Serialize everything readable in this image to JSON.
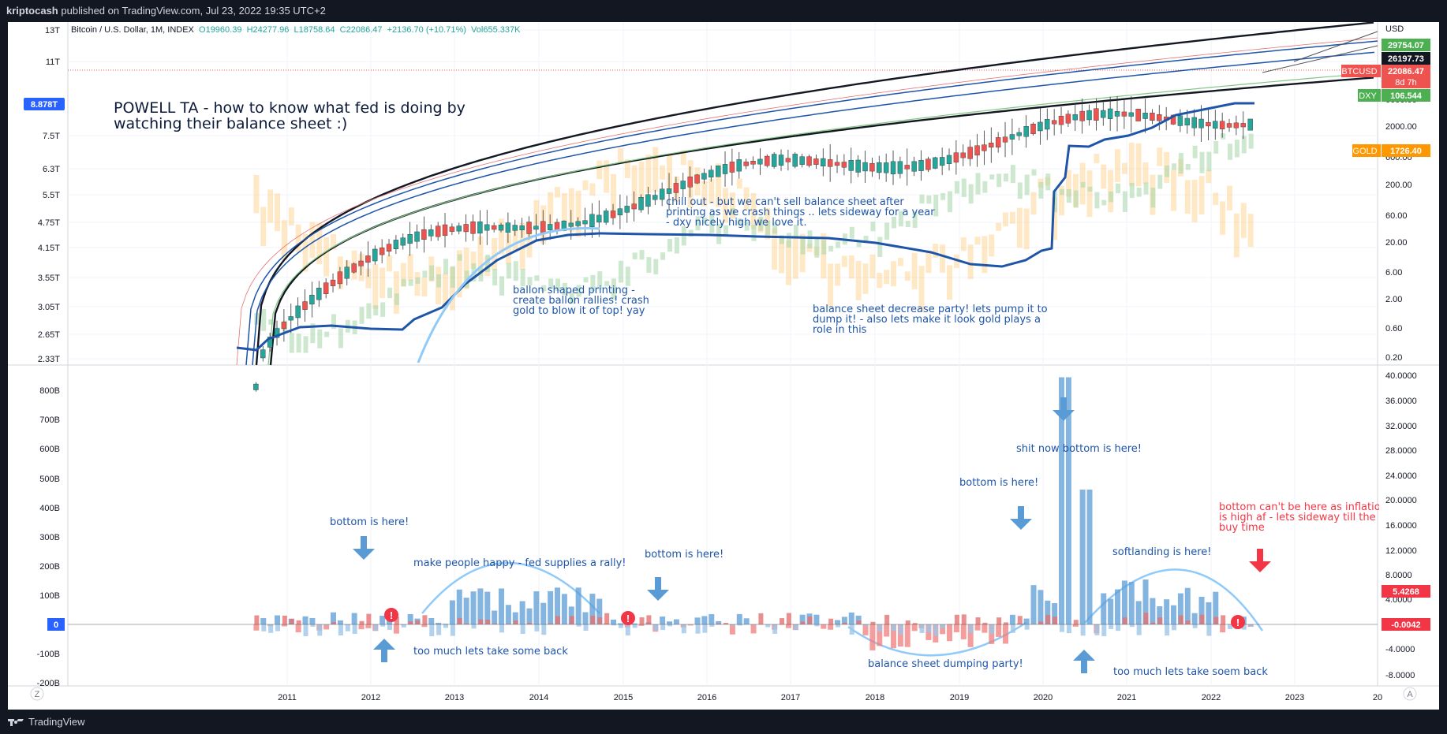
{
  "header": {
    "author": "kriptocash",
    "published_text": "published on TradingView.com, Jul 23, 2022 19:35 UTC+2"
  },
  "legend": {
    "symbol": "Bitcoin / U.S. Dollar, 1M, INDEX",
    "open": "O19960.39",
    "high": "H24277.96",
    "low": "L18758.64",
    "close": "C22086.47",
    "change": "+2136.70 (+10.71%)",
    "volume": "Vol655.337K"
  },
  "footer": {
    "brand": "TradingView",
    "left_button": "Z",
    "right_button": "A"
  },
  "colors": {
    "up": "#26a69a",
    "down": "#ef5350",
    "bs_line": "#1e55a8",
    "gold": "#ffcc80",
    "dxy": "#a5d6a7",
    "accent_blue": "#2962ff",
    "neg_red": "#f07c7c",
    "pos_blue": "#5b9bd5"
  },
  "annotations": {
    "title": "POWELL TA - how to know what fed is doing by watching their balance sheet :)",
    "chill": [
      "chill out - but we can't sell balance sheet after",
      "printing as we crash things .. lets sideway for a year",
      "- dxy nicely high we love it."
    ],
    "ballon": [
      "ballon shaped printing -",
      "create ballon rallies! crash",
      "gold to blow it of top! yay"
    ],
    "decrease": [
      "balance sheet decrease party! lets pump it to",
      "dump it! - also lets make it look gold plays a",
      "role in this"
    ],
    "bottom1": "bottom is here!",
    "happy": "make people happy - fed supplies a rally!",
    "bottom2": "bottom is here!",
    "too_much1": "too much lets take some back",
    "bottom3": "bottom is here!",
    "shit_now": "shit now bottom is here!",
    "softlanding": "softlanding is here!",
    "dumping": "balance sheet dumping party!",
    "too_much2": "too much lets take soem back",
    "inflation": [
      "bottom can't be here as inflation",
      "is high af - lets sideway till the",
      "buy time"
    ]
  },
  "chart_data": [
    {
      "type": "line",
      "title": "",
      "x": [
        "2011",
        "2012",
        "2013",
        "2014",
        "2015",
        "2016",
        "2017",
        "2018",
        "2019",
        "2020",
        "2021",
        "2022",
        "2023",
        "20"
      ],
      "left_axis_ticks": [
        "13T",
        "11T",
        "7.5T",
        "6.3T",
        "5.5T",
        "4.75T",
        "4.15T",
        "3.55T",
        "3.05T",
        "2.65T",
        "2.33T"
      ],
      "left_axis_highlight": "8.878T",
      "right_axis_ticks": [
        "USD",
        "6000.00",
        "2000.00",
        "600.00",
        "200.00",
        "60.00",
        "20.00",
        "6.00",
        "2.00",
        "0.60",
        "0.20"
      ],
      "price_tags": [
        {
          "label": "",
          "value": "29754.07",
          "color": "#4caf50"
        },
        {
          "label": "",
          "value": "26197.73",
          "color": "#131722"
        },
        {
          "label": "BTCUSD",
          "value": "22086.47",
          "sub": "8d 7h",
          "color": "#ef5350"
        },
        {
          "label": "DXY",
          "value": "106.544",
          "color": "#4caf50"
        },
        {
          "label": "GOLD",
          "value": "1726.40",
          "color": "#ff9800"
        }
      ]
    },
    {
      "type": "bar",
      "title": "",
      "left_axis_ticks": [
        "800B",
        "700B",
        "600B",
        "500B",
        "400B",
        "300B",
        "200B",
        "100B",
        "0",
        "-100B",
        "-200B"
      ],
      "right_axis_ticks": [
        "40.0000",
        "36.0000",
        "32.0000",
        "28.0000",
        "24.0000",
        "20.0000",
        "16.0000",
        "12.0000",
        "8.0000",
        "4.0000",
        "-4.0000",
        "-8.0000"
      ],
      "price_tags": [
        {
          "value": "5.4268",
          "color": "#f23645"
        },
        {
          "value": "-0.0042",
          "color": "#f23645"
        }
      ],
      "ylim": [
        -200,
        800
      ]
    }
  ]
}
